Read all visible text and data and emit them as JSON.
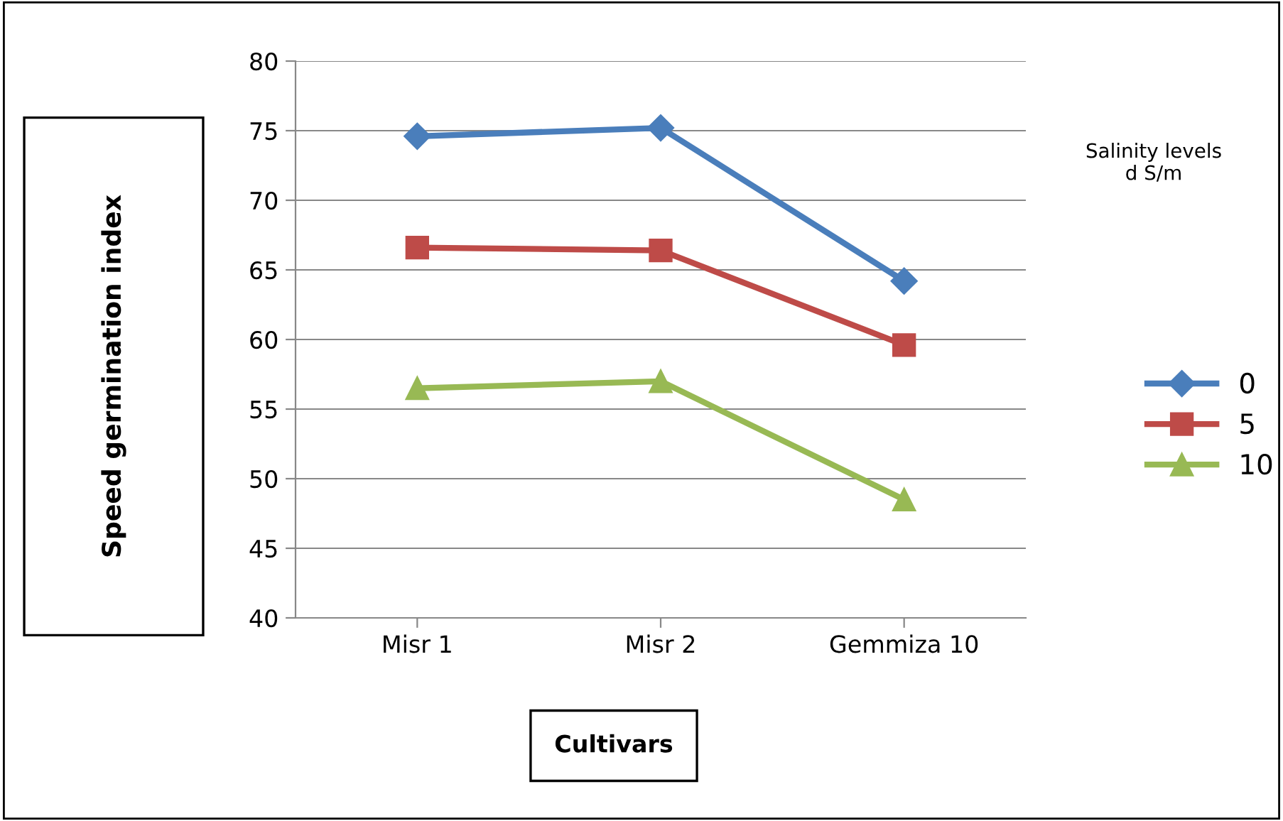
{
  "chart_data": {
    "type": "line",
    "xlabel": "Cultivars",
    "ylabel": "Speed germination index",
    "legend_title": "Salinity levels\nd S/m",
    "categories": [
      "Misr 1",
      "Misr 2",
      "Gemmiza 10"
    ],
    "series": [
      {
        "name": "0",
        "color": "#4a7ebb",
        "marker": "diamond",
        "values": [
          74.6,
          75.2,
          64.2
        ]
      },
      {
        "name": "5",
        "color": "#be4b48",
        "marker": "square",
        "values": [
          66.6,
          66.4,
          59.6
        ]
      },
      {
        "name": "10",
        "color": "#98b954",
        "marker": "triangle",
        "values": [
          56.5,
          57.0,
          48.5
        ]
      }
    ],
    "ylim": [
      40,
      80
    ],
    "yticks": [
      40,
      45,
      50,
      55,
      60,
      65,
      70,
      75,
      80
    ],
    "grid": "y",
    "legend": "right"
  }
}
